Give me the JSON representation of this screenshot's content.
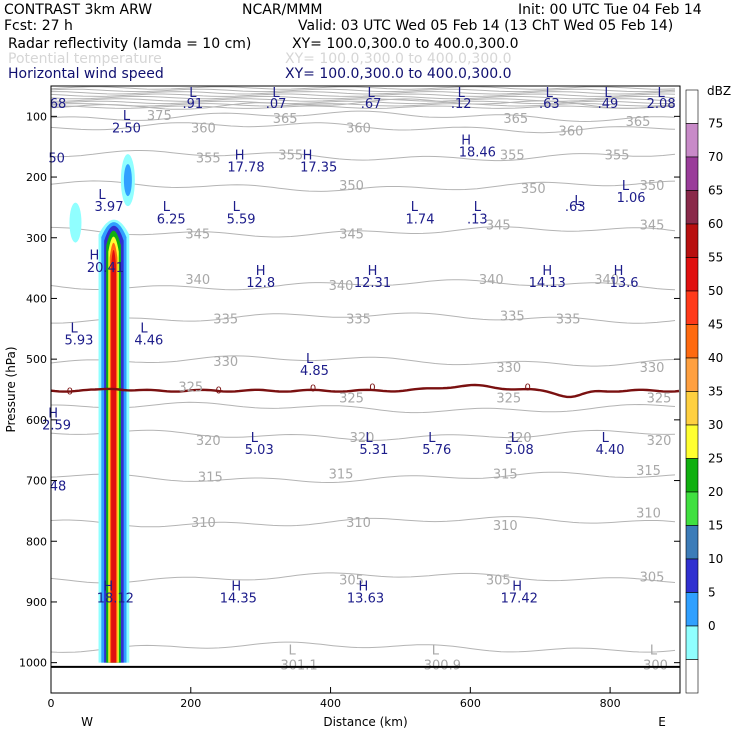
{
  "header": {
    "line1_left": "CONTRAST  3km ARW",
    "line1_mid": "NCAR/MMM",
    "line1_right": "Init: 00 UTC Tue 04 Feb 14",
    "line2_left": "Fcst:    27 h",
    "line2_right": "Valid: 03 UTC Wed 05 Feb 14 (13 ChT Wed 05 Feb 14)",
    "field1_name": "Radar reflectivity (lamda = 10 cm)",
    "field1_xy": "XY= 100.0,300.0 to 400.0,300.0",
    "field2_name": "Potential temperature",
    "field2_xy": "XY= 100.0,300.0 to 400.0,300.0",
    "field3_name": "Horizontal wind speed",
    "field3_xy": "XY= 100.0,300.0 to 400.0,300.0"
  },
  "colors": {
    "theta": "#b4b4b4",
    "wind": "#1c1c8a",
    "zero_line": "#7a1010",
    "axis": "#000000"
  },
  "chart_data": {
    "type": "heatmap",
    "xlabel": "Distance (km)",
    "ylabel": "Pressure (hPa)",
    "x_ticks": [
      0,
      200,
      400,
      600,
      800
    ],
    "x_tick_labels": [
      "0",
      "200",
      "400",
      "600",
      "800"
    ],
    "xlim": [
      0,
      900
    ],
    "y_ticks": [
      100,
      200,
      300,
      400,
      500,
      600,
      700,
      800,
      900,
      1000
    ],
    "y_tick_labels": [
      "100",
      "200",
      "300",
      "400",
      "500",
      "600",
      "700",
      "800",
      "900",
      "1000"
    ],
    "ylim": [
      1050,
      50
    ],
    "west_label": "W",
    "east_label": "E",
    "colorbar": {
      "unit": "dBZ",
      "levels": [
        "75",
        "70",
        "65",
        "60",
        "55",
        "50",
        "45",
        "40",
        "35",
        "30",
        "25",
        "20",
        "15",
        "10",
        "5",
        "0"
      ],
      "colors": [
        "#ffffff",
        "#c88ac8",
        "#9a3c9a",
        "#8a2a4a",
        "#b81010",
        "#e01010",
        "#ff3a1a",
        "#ff6a10",
        "#ffa040",
        "#ffd040",
        "#ffff30",
        "#10b010",
        "#40e040",
        "#3c7cb8",
        "#3030d0",
        "#30a0ff",
        "#90ffff",
        "#ffffff"
      ]
    },
    "theta_contours": [
      {
        "label": "375",
        "p": 80
      },
      {
        "label": "365",
        "p": 100
      },
      {
        "label": "360",
        "p": 118
      },
      {
        "label": "355",
        "p": 165
      },
      {
        "label": "350",
        "p": 215
      },
      {
        "label": "345",
        "p": 290
      },
      {
        "label": "340",
        "p": 378
      },
      {
        "label": "335",
        "p": 432
      },
      {
        "label": "330",
        "p": 503
      },
      {
        "label": "325",
        "p": 580
      },
      {
        "label": "320",
        "p": 625
      },
      {
        "label": "315",
        "p": 695
      },
      {
        "label": "310",
        "p": 768
      },
      {
        "label": "305",
        "p": 860
      },
      {
        "label": "300",
        "p": 975
      }
    ],
    "theta_labels": [
      {
        "text": "375",
        "x": 155,
        "p": 98
      },
      {
        "text": "365",
        "x": 335,
        "p": 103
      },
      {
        "text": "365",
        "x": 665,
        "p": 103
      },
      {
        "text": "365",
        "x": 840,
        "p": 108
      },
      {
        "text": "360",
        "x": 218,
        "p": 118
      },
      {
        "text": "360",
        "x": 440,
        "p": 118
      },
      {
        "text": "360",
        "x": 744,
        "p": 123
      },
      {
        "text": "355",
        "x": 225,
        "p": 168
      },
      {
        "text": "355",
        "x": 343,
        "p": 163
      },
      {
        "text": "355",
        "x": 660,
        "p": 163
      },
      {
        "text": "355",
        "x": 810,
        "p": 163
      },
      {
        "text": "350",
        "x": 430,
        "p": 213
      },
      {
        "text": "350",
        "x": 690,
        "p": 218
      },
      {
        "text": "350",
        "x": 860,
        "p": 213
      },
      {
        "text": "345",
        "x": 210,
        "p": 293
      },
      {
        "text": "345",
        "x": 430,
        "p": 293
      },
      {
        "text": "345",
        "x": 640,
        "p": 278
      },
      {
        "text": "345",
        "x": 860,
        "p": 278
      },
      {
        "text": "340",
        "x": 210,
        "p": 368
      },
      {
        "text": "340",
        "x": 415,
        "p": 378
      },
      {
        "text": "340",
        "x": 630,
        "p": 368
      },
      {
        "text": "340",
        "x": 795,
        "p": 368
      },
      {
        "text": "335",
        "x": 250,
        "p": 433
      },
      {
        "text": "335",
        "x": 440,
        "p": 433
      },
      {
        "text": "335",
        "x": 660,
        "p": 428
      },
      {
        "text": "335",
        "x": 740,
        "p": 433
      },
      {
        "text": "330",
        "x": 250,
        "p": 503
      },
      {
        "text": "330",
        "x": 655,
        "p": 513
      },
      {
        "text": "330",
        "x": 860,
        "p": 513
      },
      {
        "text": "325",
        "x": 200,
        "p": 545
      },
      {
        "text": "325",
        "x": 430,
        "p": 563
      },
      {
        "text": "325",
        "x": 655,
        "p": 563
      },
      {
        "text": "325",
        "x": 870,
        "p": 563
      },
      {
        "text": "320",
        "x": 225,
        "p": 633
      },
      {
        "text": "320",
        "x": 445,
        "p": 628
      },
      {
        "text": "320",
        "x": 670,
        "p": 628
      },
      {
        "text": "320",
        "x": 870,
        "p": 633
      },
      {
        "text": "315",
        "x": 228,
        "p": 693
      },
      {
        "text": "315",
        "x": 415,
        "p": 688
      },
      {
        "text": "315",
        "x": 650,
        "p": 688
      },
      {
        "text": "315",
        "x": 855,
        "p": 683
      },
      {
        "text": "310",
        "x": 218,
        "p": 768
      },
      {
        "text": "310",
        "x": 440,
        "p": 768
      },
      {
        "text": "310",
        "x": 650,
        "p": 773
      },
      {
        "text": "310",
        "x": 855,
        "p": 753
      },
      {
        "text": "305",
        "x": 430,
        "p": 863
      },
      {
        "text": "305",
        "x": 640,
        "p": 863
      },
      {
        "text": "305",
        "x": 860,
        "p": 858
      },
      {
        "text": "301.1",
        "x": 355,
        "p": 1003
      },
      {
        "text": "300.9",
        "x": 560,
        "p": 1003
      },
      {
        "text": "300",
        "x": 865,
        "p": 1003
      },
      {
        "text": "L",
        "x": 345,
        "p": 978
      },
      {
        "text": "L",
        "x": 550,
        "p": 978
      },
      {
        "text": "L",
        "x": 862,
        "p": 978
      }
    ],
    "wind_labels": [
      {
        "text": "68",
        "x": 10,
        "p": 78
      },
      {
        "text": "L",
        "x": 203,
        "p": 60
      },
      {
        "text": ".91",
        "x": 203,
        "p": 78
      },
      {
        "text": "L",
        "x": 322,
        "p": 60
      },
      {
        "text": ".07",
        "x": 322,
        "p": 78
      },
      {
        "text": "L",
        "x": 458,
        "p": 60
      },
      {
        "text": ".67",
        "x": 458,
        "p": 78
      },
      {
        "text": "L",
        "x": 587,
        "p": 60
      },
      {
        "text": ".12",
        "x": 587,
        "p": 78
      },
      {
        "text": "L",
        "x": 713,
        "p": 60
      },
      {
        "text": ".63",
        "x": 713,
        "p": 78
      },
      {
        "text": "L",
        "x": 797,
        "p": 60
      },
      {
        "text": ".49",
        "x": 797,
        "p": 78
      },
      {
        "text": "L",
        "x": 873,
        "p": 60
      },
      {
        "text": "2.08",
        "x": 873,
        "p": 78
      },
      {
        "text": "L",
        "x": 108,
        "p": 98
      },
      {
        "text": "2.50",
        "x": 108,
        "p": 118
      },
      {
        "text": "H",
        "x": 594,
        "p": 138
      },
      {
        "text": "18.46",
        "x": 610,
        "p": 158
      },
      {
        "text": "50",
        "x": 8,
        "p": 168
      },
      {
        "text": "H",
        "x": 270,
        "p": 163
      },
      {
        "text": "17.78",
        "x": 279,
        "p": 183
      },
      {
        "text": "H",
        "x": 367,
        "p": 163
      },
      {
        "text": "17.35",
        "x": 383,
        "p": 183
      },
      {
        "text": "L",
        "x": 822,
        "p": 213
      },
      {
        "text": "1.06",
        "x": 830,
        "p": 233
      },
      {
        "text": "L",
        "x": 73,
        "p": 228
      },
      {
        "text": "3.97",
        "x": 83,
        "p": 248
      },
      {
        "text": "L",
        "x": 165,
        "p": 248
      },
      {
        "text": "6.25",
        "x": 172,
        "p": 268
      },
      {
        "text": "L",
        "x": 265,
        "p": 248
      },
      {
        "text": "5.59",
        "x": 272,
        "p": 268
      },
      {
        "text": "L",
        "x": 520,
        "p": 248
      },
      {
        "text": "1.74",
        "x": 528,
        "p": 268
      },
      {
        "text": "L",
        "x": 610,
        "p": 248
      },
      {
        "text": ".13",
        "x": 610,
        "p": 268
      },
      {
        "text": "L",
        "x": 754,
        "p": 238
      },
      {
        "text": ".63",
        "x": 750,
        "p": 248
      },
      {
        "text": "H",
        "x": 62,
        "p": 328
      },
      {
        "text": "20.41",
        "x": 78,
        "p": 348
      },
      {
        "text": "H",
        "x": 300,
        "p": 353
      },
      {
        "text": "12.8",
        "x": 300,
        "p": 373
      },
      {
        "text": "H",
        "x": 460,
        "p": 353
      },
      {
        "text": "12.31",
        "x": 460,
        "p": 373
      },
      {
        "text": "H",
        "x": 710,
        "p": 353
      },
      {
        "text": "14.13",
        "x": 710,
        "p": 373
      },
      {
        "text": "H",
        "x": 812,
        "p": 353
      },
      {
        "text": "13.6",
        "x": 820,
        "p": 373
      },
      {
        "text": "L",
        "x": 33,
        "p": 448
      },
      {
        "text": "5.93",
        "x": 40,
        "p": 468
      },
      {
        "text": "L",
        "x": 133,
        "p": 448
      },
      {
        "text": "4.46",
        "x": 140,
        "p": 468
      },
      {
        "text": "L",
        "x": 370,
        "p": 498
      },
      {
        "text": "4.85",
        "x": 377,
        "p": 518
      },
      {
        "text": "H",
        "x": 3,
        "p": 588
      },
      {
        "text": "2.59",
        "x": 8,
        "p": 608
      },
      {
        "text": "L",
        "x": 291,
        "p": 628
      },
      {
        "text": "5.03",
        "x": 298,
        "p": 648
      },
      {
        "text": "L",
        "x": 455,
        "p": 628
      },
      {
        "text": "5.31",
        "x": 462,
        "p": 648
      },
      {
        "text": "L",
        "x": 545,
        "p": 628
      },
      {
        "text": "5.76",
        "x": 552,
        "p": 648
      },
      {
        "text": "L",
        "x": 663,
        "p": 628
      },
      {
        "text": "5.08",
        "x": 670,
        "p": 648
      },
      {
        "text": "L",
        "x": 793,
        "p": 628
      },
      {
        "text": "4.40",
        "x": 800,
        "p": 648
      },
      {
        "text": "48",
        "x": 10,
        "p": 708
      },
      {
        "text": "H",
        "x": 82,
        "p": 873
      },
      {
        "text": "18.12",
        "x": 92,
        "p": 893
      },
      {
        "text": "H",
        "x": 265,
        "p": 873
      },
      {
        "text": "14.35",
        "x": 268,
        "p": 893
      },
      {
        "text": "H",
        "x": 447,
        "p": 873
      },
      {
        "text": "13.63",
        "x": 450,
        "p": 893
      },
      {
        "text": "H",
        "x": 667,
        "p": 873
      },
      {
        "text": "17.42",
        "x": 670,
        "p": 893
      }
    ],
    "zero_line_labels": [
      {
        "text": "0",
        "x": 27,
        "p": 552
      },
      {
        "text": "0",
        "x": 240,
        "p": 550
      },
      {
        "text": "0",
        "x": 460,
        "p": 545
      },
      {
        "text": "0",
        "x": 682,
        "p": 545
      },
      {
        "text": "0",
        "x": 375,
        "p": 547
      }
    ]
  }
}
